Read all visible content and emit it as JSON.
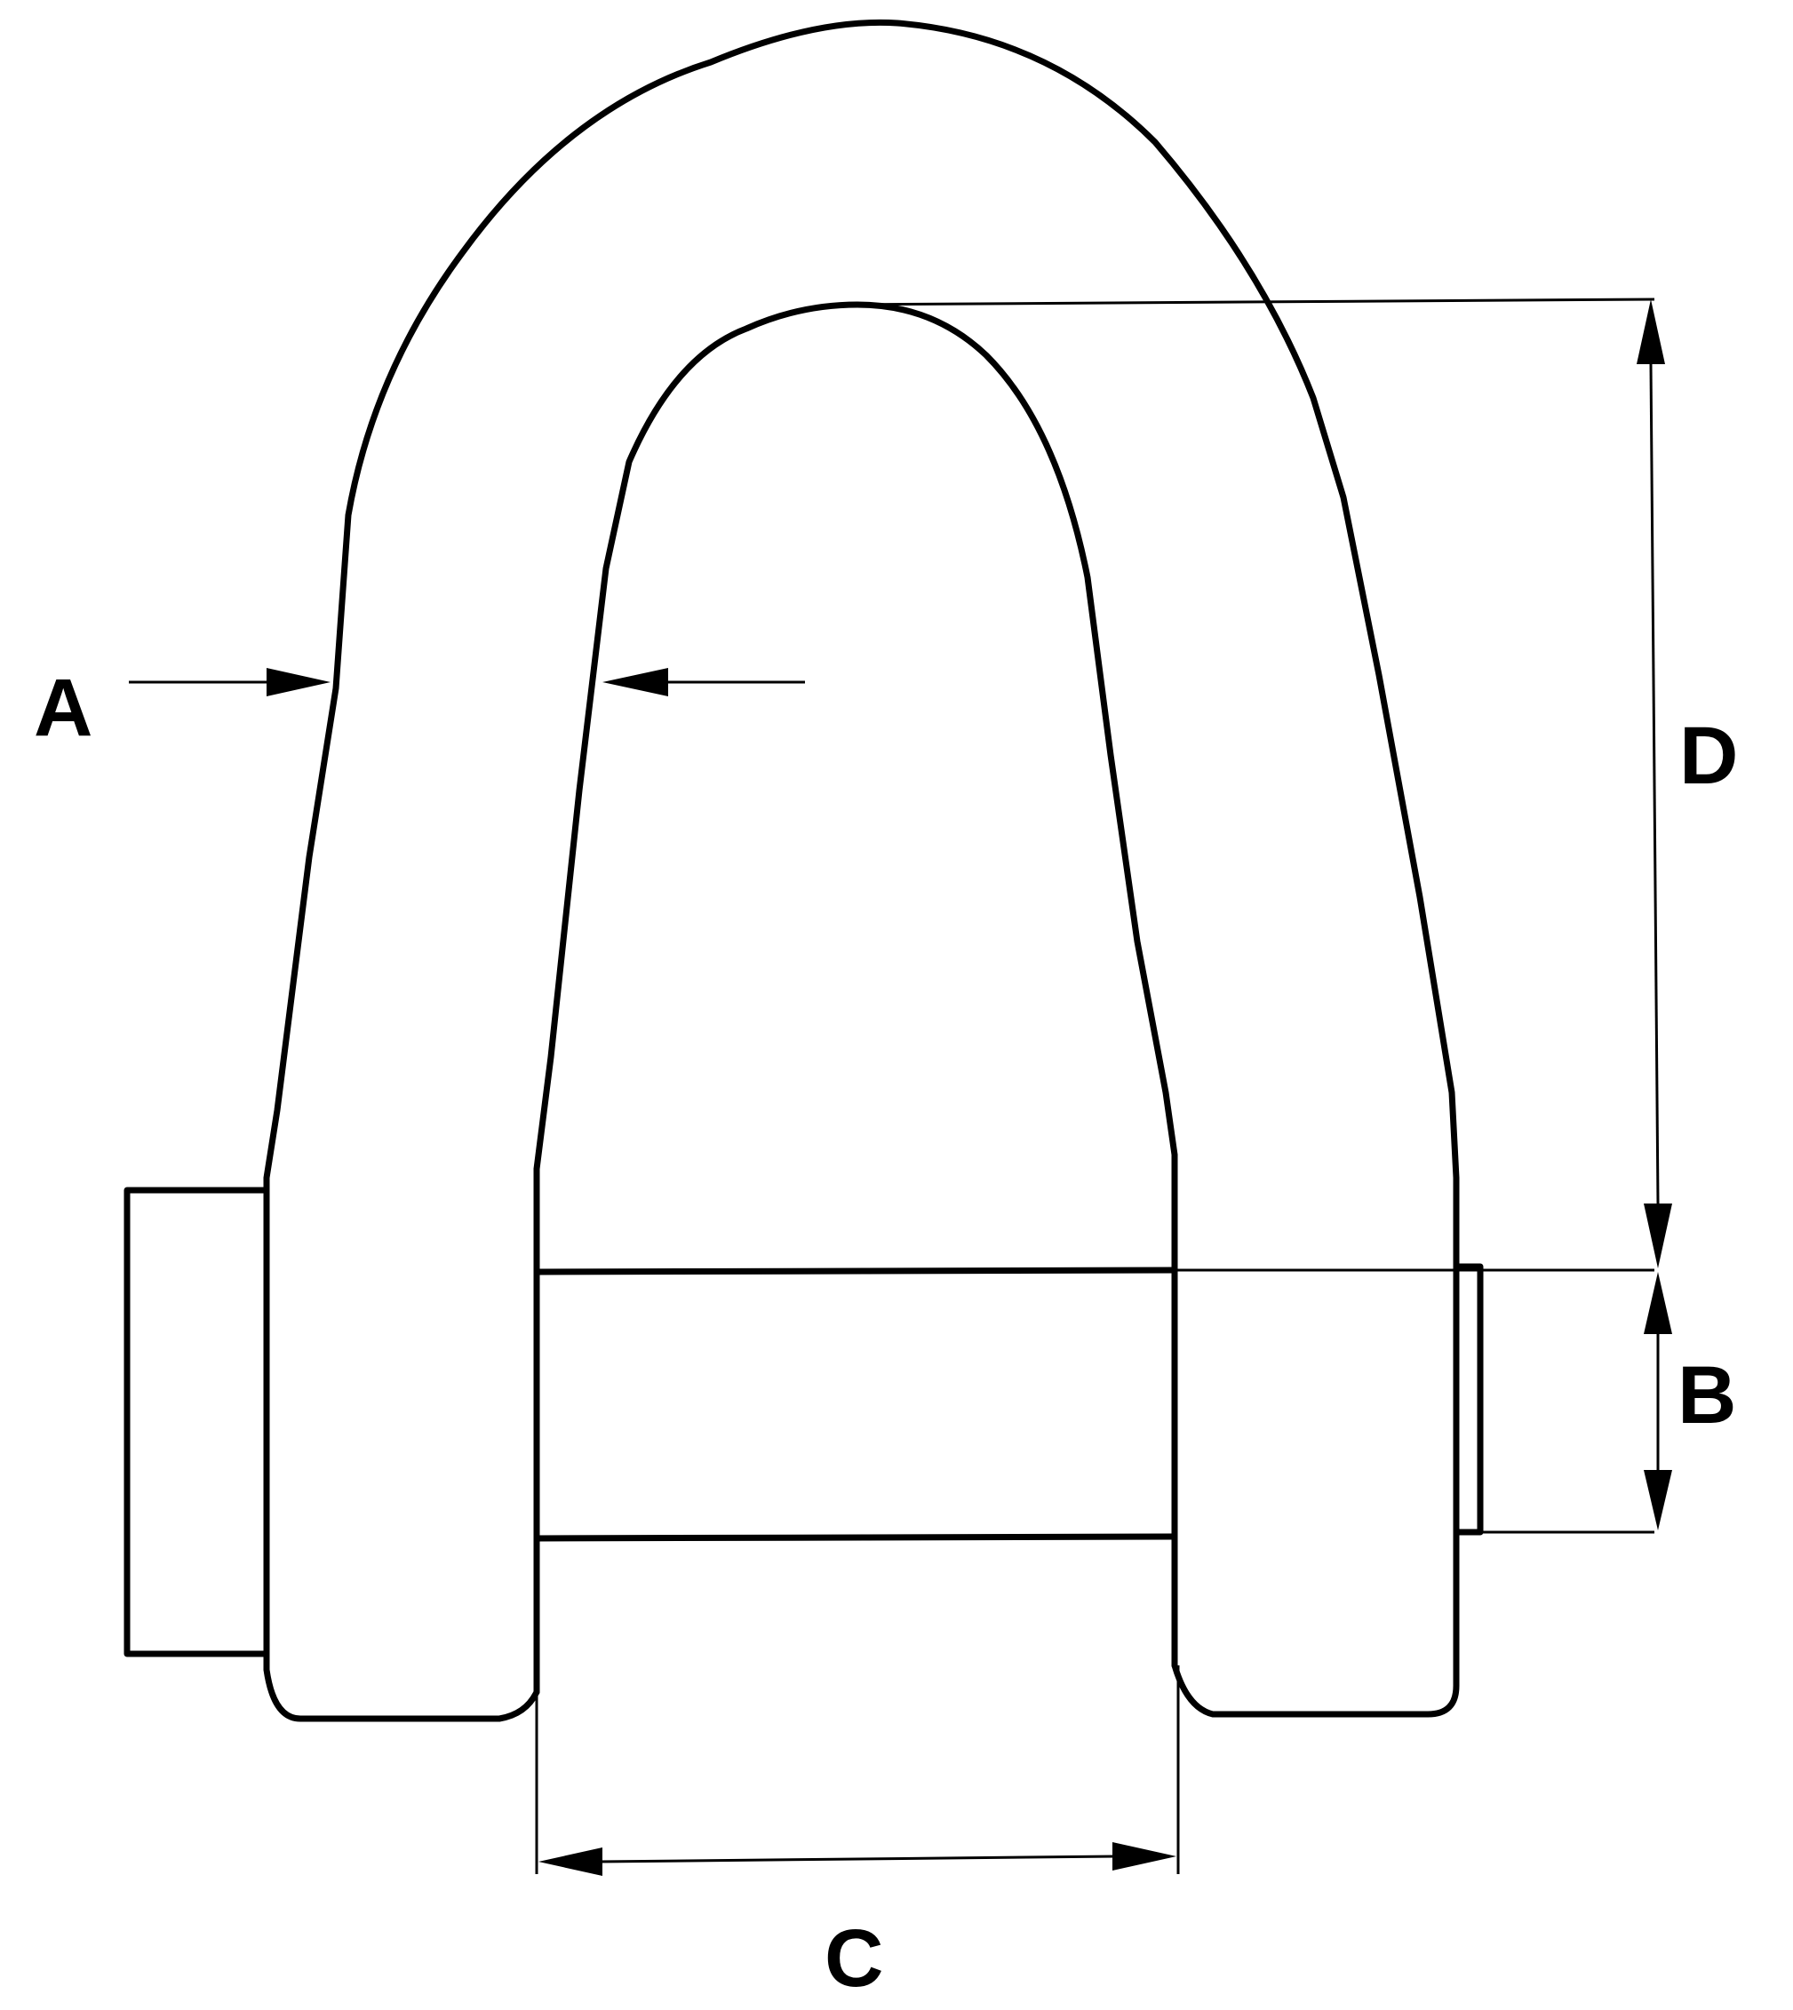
{
  "diagram": {
    "labels": {
      "a": "A",
      "b": "B",
      "c": "C",
      "d": "D"
    },
    "line_color": "#000000",
    "background": "#ffffff"
  }
}
